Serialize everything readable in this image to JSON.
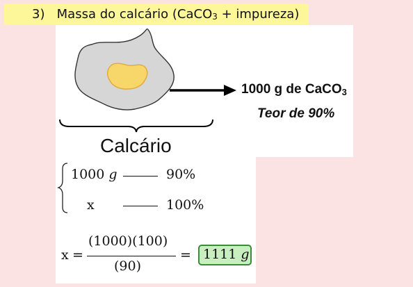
{
  "header": {
    "number": "3)",
    "title_before": "Massa do calcário (CaCO",
    "title_sub": "3",
    "title_after": " + impureza)",
    "bg_color": "#fdf79a"
  },
  "figure": {
    "rock_color": "#d6d6d6",
    "inclusion_color": "#f7d66a",
    "mass_label_before": "1000 g de CaCO",
    "mass_label_sub": "3",
    "teor_label": "Teor de 90%",
    "calcario_label": "Calcário",
    "arrow_icon": "arrow-right-icon",
    "brace_icon": "curly-brace-icon"
  },
  "proportion": {
    "row1": {
      "left": "1000",
      "left_unit": "g",
      "right": "90%"
    },
    "row2": {
      "left": "x",
      "right": "100%"
    }
  },
  "equation": {
    "lhs": "x",
    "eq1": "=",
    "numerator": "(1000)(100)",
    "denominator": "(90)",
    "eq2": "=",
    "result_value": "1111",
    "result_unit": "g",
    "result_color": "#c9efc0"
  }
}
